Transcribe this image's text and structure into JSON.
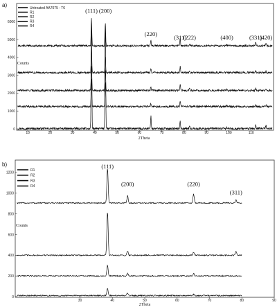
{
  "chart_data": [
    {
      "type": "line",
      "panel_label": "a)",
      "xlabel": "2Theta",
      "ylabel": "Counts",
      "xlim": [
        5,
        120
      ],
      "x_ticks": [
        10,
        20,
        30,
        40,
        50,
        60,
        70,
        80,
        90,
        100,
        110
      ],
      "y_ticks": [
        0,
        1000,
        2000,
        3000,
        4000,
        5000,
        6000
      ],
      "ylim": [
        0,
        6900
      ],
      "grid": false,
      "legend_position": "top-left",
      "peak_labels": [
        {
          "text": "(111)",
          "x": 38.5,
          "y": 6500
        },
        {
          "text": "(200)",
          "x": 44.7,
          "y": 6500
        },
        {
          "text": "(220)",
          "x": 65.1,
          "y": 5200
        },
        {
          "text": "(311)",
          "x": 78.2,
          "y": 5000
        },
        {
          "text": "(222)",
          "x": 82.4,
          "y": 5000
        },
        {
          "text": "(400)",
          "x": 99.1,
          "y": 5000
        },
        {
          "text": "(331)",
          "x": 112.0,
          "y": 5000
        },
        {
          "text": "(420)",
          "x": 116.6,
          "y": 5000
        }
      ],
      "peak_positions": [
        38.5,
        44.7,
        65.1,
        78.2,
        82.4,
        99.1,
        112.0,
        116.6
      ],
      "series": [
        {
          "name": "Untreated AA7075 - T6",
          "baseline": 20,
          "peaks": [
            6000,
            6000,
            700,
            450,
            120,
            60,
            180,
            160
          ]
        },
        {
          "name": "R1",
          "baseline": 1250,
          "peaks": [
            1550,
            1450,
            180,
            280,
            70,
            50,
            100,
            80
          ]
        },
        {
          "name": "R2",
          "baseline": 2150,
          "peaks": [
            1400,
            1100,
            230,
            330,
            90,
            60,
            130,
            120
          ]
        },
        {
          "name": "R3",
          "baseline": 3150,
          "peaks": [
            1400,
            850,
            200,
            340,
            90,
            60,
            120,
            110
          ]
        },
        {
          "name": "R4",
          "baseline": 4650,
          "peaks": [
            1550,
            1250,
            300,
            380,
            110,
            70,
            180,
            180
          ]
        }
      ],
      "colors": {
        "line": "#111111",
        "axis": "#333333"
      }
    },
    {
      "type": "line",
      "panel_label": "b)",
      "xlabel": "2Theta",
      "ylabel": "Counts",
      "xlim": [
        10,
        90
      ],
      "x_ticks": [
        30,
        40,
        50,
        60,
        70,
        80,
        90
      ],
      "y_ticks": [
        0,
        200,
        400,
        600,
        800,
        1000,
        1200
      ],
      "ylim": [
        0,
        1300
      ],
      "grid": false,
      "legend_position": "top-left",
      "peak_labels": [
        {
          "text": "(111)",
          "x": 38.5,
          "y": 1240
        },
        {
          "text": "(200)",
          "x": 44.7,
          "y": 1070
        },
        {
          "text": "(220)",
          "x": 65.1,
          "y": 1070
        },
        {
          "text": "(311)",
          "x": 78.2,
          "y": 990
        }
      ],
      "peak_positions": [
        38.5,
        44.7,
        65.1,
        78.2
      ],
      "series": [
        {
          "name": "R1",
          "baseline": 905,
          "peaks": [
            330,
            70,
            85,
            30
          ]
        },
        {
          "name": "R2",
          "baseline": 400,
          "peaks": [
            420,
            40,
            30,
            35
          ]
        },
        {
          "name": "R3",
          "baseline": 200,
          "peaks": [
            100,
            25,
            25,
            0
          ]
        },
        {
          "name": "R4",
          "baseline": 10,
          "peaks": [
            70,
            25,
            10,
            0
          ]
        }
      ],
      "colors": {
        "line": "#111111",
        "axis": "#333333"
      }
    }
  ]
}
